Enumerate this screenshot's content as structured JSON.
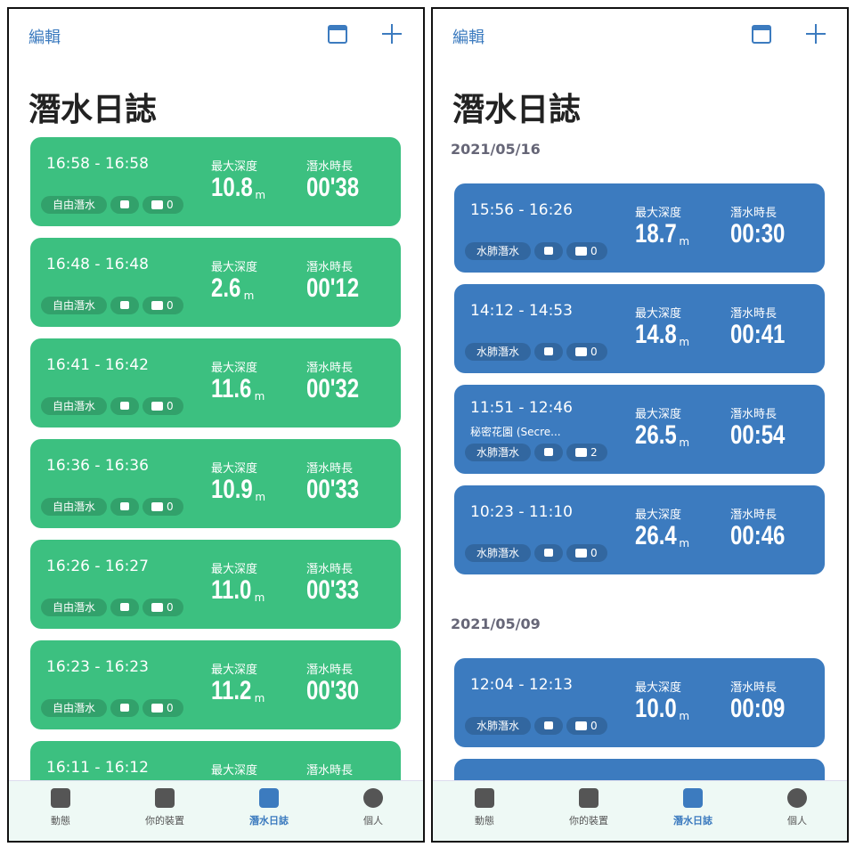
{
  "screens": [
    {
      "theme": "green",
      "header": {
        "edit": "編輯"
      },
      "title": "潛水日誌",
      "dives": [
        {
          "time": "16:58 - 16:58",
          "tag": "自由潛水",
          "photos": 0,
          "depth_label": "最大深度",
          "depth": "10.8",
          "depth_unit": "m",
          "duration_label": "潛水時長",
          "duration": "00'38"
        },
        {
          "time": "16:48 - 16:48",
          "tag": "自由潛水",
          "photos": 0,
          "depth_label": "最大深度",
          "depth": "2.6",
          "depth_unit": "m",
          "duration_label": "潛水時長",
          "duration": "00'12"
        },
        {
          "time": "16:41 - 16:42",
          "tag": "自由潛水",
          "photos": 0,
          "depth_label": "最大深度",
          "depth": "11.6",
          "depth_unit": "m",
          "duration_label": "潛水時長",
          "duration": "00'32"
        },
        {
          "time": "16:36 - 16:36",
          "tag": "自由潛水",
          "photos": 0,
          "depth_label": "最大深度",
          "depth": "10.9",
          "depth_unit": "m",
          "duration_label": "潛水時長",
          "duration": "00'33"
        },
        {
          "time": "16:26 - 16:27",
          "tag": "自由潛水",
          "photos": 0,
          "depth_label": "最大深度",
          "depth": "11.0",
          "depth_unit": "m",
          "duration_label": "潛水時長",
          "duration": "00'33"
        },
        {
          "time": "16:23 - 16:23",
          "tag": "自由潛水",
          "photos": 0,
          "depth_label": "最大深度",
          "depth": "11.2",
          "depth_unit": "m",
          "duration_label": "潛水時長",
          "duration": "00'30"
        },
        {
          "time": "16:11 - 16:12",
          "depth_label": "最大深度",
          "duration_label": "潛水時長"
        }
      ],
      "tabs": [
        "動態",
        "你的裝置",
        "潛水日誌",
        "個人"
      ]
    },
    {
      "theme": "blue",
      "header": {
        "edit": "編輯"
      },
      "title": "潛水日誌",
      "sections": [
        {
          "date": "2021/05/16",
          "dives": [
            {
              "time": "15:56 - 16:26",
              "tag": "水肺潛水",
              "photos": 0,
              "depth_label": "最大深度",
              "depth": "18.7",
              "depth_unit": "m",
              "duration_label": "潛水時長",
              "duration": "00:30"
            },
            {
              "time": "14:12 - 14:53",
              "tag": "水肺潛水",
              "photos": 0,
              "depth_label": "最大深度",
              "depth": "14.8",
              "depth_unit": "m",
              "duration_label": "潛水時長",
              "duration": "00:41"
            },
            {
              "time": "11:51 - 12:46",
              "location": "秘密花園 (Secre...",
              "tag": "水肺潛水",
              "photos": 2,
              "depth_label": "最大深度",
              "depth": "26.5",
              "depth_unit": "m",
              "duration_label": "潛水時長",
              "duration": "00:54"
            },
            {
              "time": "10:23 - 11:10",
              "tag": "水肺潛水",
              "photos": 0,
              "depth_label": "最大深度",
              "depth": "26.4",
              "depth_unit": "m",
              "duration_label": "潛水時長",
              "duration": "00:46"
            }
          ]
        },
        {
          "date": "2021/05/09",
          "dives": [
            {
              "time": "12:04 - 12:13",
              "tag": "水肺潛水",
              "photos": 0,
              "depth_label": "最大深度",
              "depth": "10.0",
              "depth_unit": "m",
              "duration_label": "潛水時長",
              "duration": "00:09"
            },
            {}
          ]
        }
      ],
      "tabs": [
        "動態",
        "你的裝置",
        "潛水日誌",
        "個人"
      ]
    }
  ]
}
